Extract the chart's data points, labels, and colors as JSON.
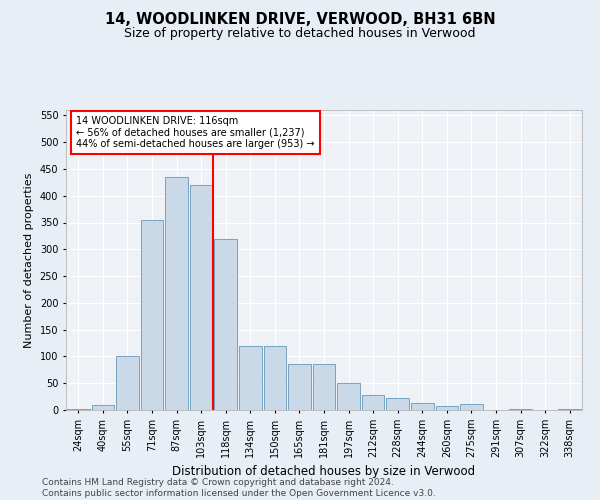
{
  "title": "14, WOODLINKEN DRIVE, VERWOOD, BH31 6BN",
  "subtitle": "Size of property relative to detached houses in Verwood",
  "xlabel": "Distribution of detached houses by size in Verwood",
  "ylabel": "Number of detached properties",
  "categories": [
    "24sqm",
    "40sqm",
    "55sqm",
    "71sqm",
    "87sqm",
    "103sqm",
    "118sqm",
    "134sqm",
    "150sqm",
    "165sqm",
    "181sqm",
    "197sqm",
    "212sqm",
    "228sqm",
    "244sqm",
    "260sqm",
    "275sqm",
    "291sqm",
    "307sqm",
    "322sqm",
    "338sqm"
  ],
  "bar_values": [
    2,
    10,
    100,
    355,
    435,
    420,
    320,
    120,
    120,
    85,
    85,
    50,
    28,
    23,
    14,
    8,
    12,
    0,
    2,
    0,
    2
  ],
  "bar_color": "#c9d9e8",
  "bar_edge_color": "#6699bb",
  "vline_color": "red",
  "annotation_text": "14 WOODLINKEN DRIVE: 116sqm\n← 56% of detached houses are smaller (1,237)\n44% of semi-detached houses are larger (953) →",
  "annotation_box_color": "white",
  "annotation_box_edge": "red",
  "ylim": [
    0,
    560
  ],
  "yticks": [
    0,
    50,
    100,
    150,
    200,
    250,
    300,
    350,
    400,
    450,
    500,
    550
  ],
  "bg_color": "#e8eef5",
  "plot_bg_color": "#eef2f7",
  "footer": "Contains HM Land Registry data © Crown copyright and database right 2024.\nContains public sector information licensed under the Open Government Licence v3.0.",
  "title_fontsize": 10.5,
  "subtitle_fontsize": 9,
  "xlabel_fontsize": 8.5,
  "ylabel_fontsize": 8,
  "tick_fontsize": 7,
  "footer_fontsize": 6.5
}
